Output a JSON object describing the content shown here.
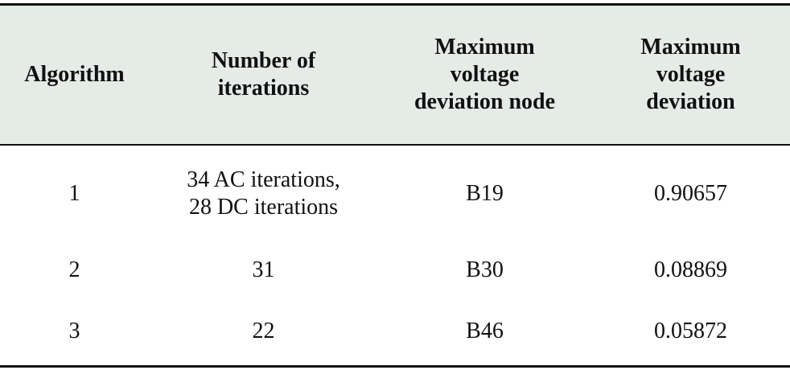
{
  "table": {
    "header": [
      "Algorithm",
      "Number of\niterations",
      "Maximum\nvoltage\ndeviation node",
      "Maximum\nvoltage\ndeviation"
    ],
    "rows": [
      [
        "1",
        "34 AC iterations,\n28 DC iterations",
        "B19",
        "0.90657"
      ],
      [
        "2",
        "31",
        "B30",
        "0.08869"
      ],
      [
        "3",
        "22",
        "B46",
        "0.05872"
      ]
    ]
  }
}
